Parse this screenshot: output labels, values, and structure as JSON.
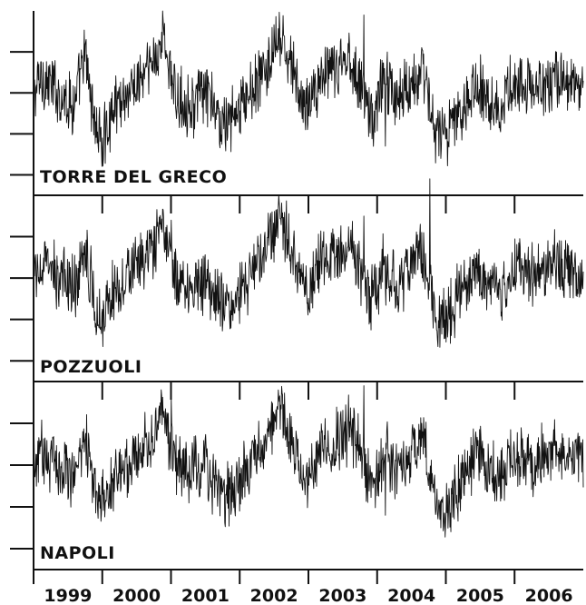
{
  "chart_data": {
    "type": "line",
    "x_categories": [
      "1999",
      "2000",
      "2001",
      "2002",
      "2003",
      "2004",
      "2005",
      "2006"
    ],
    "xlim": [
      1999.0,
      2007.0
    ],
    "ylim": [
      -2.5,
      2.0
    ],
    "grid": false,
    "legend": "none",
    "series_color": "#111111",
    "panels": [
      {
        "label": "TORRE DEL GRECO",
        "anchors": [
          [
            1999.0,
            -0.1
          ],
          [
            1999.1,
            0.4
          ],
          [
            1999.3,
            0.1
          ],
          [
            1999.6,
            -0.3
          ],
          [
            1999.75,
            0.9
          ],
          [
            1999.9,
            -0.8
          ],
          [
            2000.0,
            -1.2
          ],
          [
            2000.2,
            -0.2
          ],
          [
            2000.45,
            0.1
          ],
          [
            2000.7,
            0.6
          ],
          [
            2000.9,
            1.4
          ],
          [
            2001.05,
            -0.1
          ],
          [
            2001.3,
            -0.3
          ],
          [
            2001.5,
            0.0
          ],
          [
            2001.75,
            -0.8
          ],
          [
            2001.95,
            -0.5
          ],
          [
            2002.15,
            0.0
          ],
          [
            2002.4,
            0.6
          ],
          [
            2002.6,
            1.3
          ],
          [
            2002.8,
            0.4
          ],
          [
            2002.95,
            -0.4
          ],
          [
            2003.15,
            0.3
          ],
          [
            2003.4,
            0.5
          ],
          [
            2003.6,
            0.9
          ],
          [
            2003.8,
            0.0
          ],
          [
            2003.95,
            -0.7
          ],
          [
            2004.1,
            0.5
          ],
          [
            2004.3,
            -0.2
          ],
          [
            2004.5,
            0.3
          ],
          [
            2004.65,
            0.6
          ],
          [
            2004.85,
            -0.9
          ],
          [
            2005.0,
            -1.1
          ],
          [
            2005.2,
            -0.5
          ],
          [
            2005.4,
            0.2
          ],
          [
            2005.6,
            0.0
          ],
          [
            2005.8,
            -0.4
          ],
          [
            2006.0,
            0.3
          ],
          [
            2006.3,
            0.0
          ],
          [
            2006.6,
            0.4
          ],
          [
            2006.85,
            0.2
          ],
          [
            2007.0,
            0.1
          ]
        ],
        "spikes": [
          [
            2003.81,
            1.9
          ],
          [
            2002.96,
            -0.9
          ],
          [
            2004.12,
            -1.3
          ],
          [
            2004.93,
            -1.6
          ],
          [
            2000.0,
            -1.1
          ]
        ]
      },
      {
        "label": "POZZUOLI",
        "anchors": [
          [
            1999.0,
            -0.1
          ],
          [
            1999.1,
            0.3
          ],
          [
            1999.3,
            0.1
          ],
          [
            1999.6,
            -0.2
          ],
          [
            1999.75,
            0.8
          ],
          [
            1999.9,
            -0.7
          ],
          [
            2000.0,
            -0.9
          ],
          [
            2000.2,
            -0.2
          ],
          [
            2000.45,
            0.2
          ],
          [
            2000.7,
            0.5
          ],
          [
            2000.9,
            1.2
          ],
          [
            2001.05,
            0.0
          ],
          [
            2001.3,
            -0.2
          ],
          [
            2001.5,
            0.0
          ],
          [
            2001.75,
            -0.7
          ],
          [
            2001.95,
            -0.4
          ],
          [
            2002.15,
            0.0
          ],
          [
            2002.4,
            0.7
          ],
          [
            2002.6,
            1.4
          ],
          [
            2002.8,
            0.4
          ],
          [
            2002.95,
            -0.3
          ],
          [
            2003.15,
            0.3
          ],
          [
            2003.4,
            0.5
          ],
          [
            2003.6,
            0.8
          ],
          [
            2003.8,
            0.0
          ],
          [
            2003.95,
            -0.6
          ],
          [
            2004.1,
            0.3
          ],
          [
            2004.3,
            -0.2
          ],
          [
            2004.5,
            0.4
          ],
          [
            2004.65,
            0.7
          ],
          [
            2004.85,
            -0.8
          ],
          [
            2005.0,
            -1.0
          ],
          [
            2005.2,
            -0.4
          ],
          [
            2005.4,
            0.2
          ],
          [
            2005.6,
            0.0
          ],
          [
            2005.8,
            -0.4
          ],
          [
            2006.0,
            0.3
          ],
          [
            2006.3,
            0.0
          ],
          [
            2006.6,
            0.4
          ],
          [
            2006.85,
            0.2
          ],
          [
            2007.0,
            0.1
          ]
        ],
        "spikes": [
          [
            2004.77,
            2.4
          ],
          [
            2003.81,
            1.5
          ],
          [
            2004.9,
            -1.2
          ],
          [
            2001.0,
            1.4
          ],
          [
            2002.0,
            -1.1
          ]
        ]
      },
      {
        "label": "NAPOLI",
        "anchors": [
          [
            1999.0,
            -0.1
          ],
          [
            1999.1,
            0.3
          ],
          [
            1999.3,
            0.1
          ],
          [
            1999.6,
            -0.2
          ],
          [
            1999.75,
            0.9
          ],
          [
            1999.9,
            -0.8
          ],
          [
            2000.0,
            -1.0
          ],
          [
            2000.2,
            -0.2
          ],
          [
            2000.45,
            0.2
          ],
          [
            2000.7,
            0.6
          ],
          [
            2000.9,
            1.3
          ],
          [
            2001.05,
            0.0
          ],
          [
            2001.3,
            -0.2
          ],
          [
            2001.5,
            0.0
          ],
          [
            2001.75,
            -0.8
          ],
          [
            2001.95,
            -0.5
          ],
          [
            2002.15,
            0.0
          ],
          [
            2002.4,
            0.7
          ],
          [
            2002.6,
            1.4
          ],
          [
            2002.8,
            0.4
          ],
          [
            2002.95,
            -0.4
          ],
          [
            2003.15,
            0.3
          ],
          [
            2003.4,
            0.5
          ],
          [
            2003.6,
            0.9
          ],
          [
            2003.8,
            0.1
          ],
          [
            2003.95,
            -0.7
          ],
          [
            2004.1,
            0.4
          ],
          [
            2004.3,
            -0.2
          ],
          [
            2004.5,
            0.3
          ],
          [
            2004.65,
            0.7
          ],
          [
            2004.85,
            -0.9
          ],
          [
            2005.0,
            -1.1
          ],
          [
            2005.2,
            -0.5
          ],
          [
            2005.4,
            0.2
          ],
          [
            2005.6,
            0.0
          ],
          [
            2005.8,
            -0.4
          ],
          [
            2006.0,
            0.3
          ],
          [
            2006.3,
            0.0
          ],
          [
            2006.6,
            0.4
          ],
          [
            2006.85,
            0.2
          ],
          [
            2007.0,
            0.1
          ]
        ],
        "spikes": [
          [
            2003.81,
            1.9
          ],
          [
            2001.0,
            1.6
          ],
          [
            2004.93,
            -1.5
          ],
          [
            2002.0,
            -1.1
          ],
          [
            2004.12,
            -1.2
          ]
        ]
      }
    ]
  }
}
